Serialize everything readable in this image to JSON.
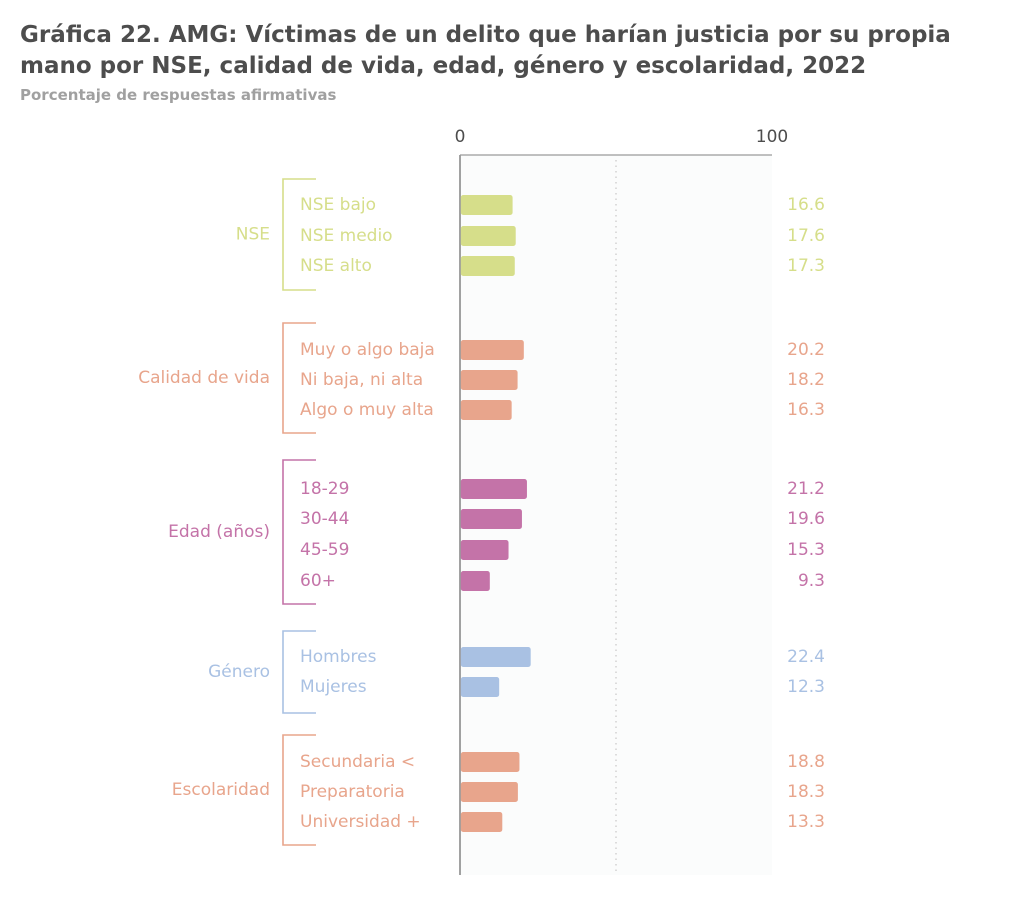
{
  "title": "Gráfica 22. AMG: Víctimas de un delito que harían justicia por su propia mano por NSE, calidad de vida, edad, género y escolaridad, 2022",
  "subtitle": "Porcentaje de respuestas afirmativas",
  "chart_data": {
    "type": "bar",
    "orientation": "horizontal",
    "xlim": [
      0,
      100
    ],
    "axis_ticks": [
      "0",
      "100"
    ],
    "groups": [
      {
        "label": "NSE",
        "color": "#d6de8a",
        "categories": [
          "NSE bajo",
          "NSE medio",
          "NSE alto"
        ],
        "values": [
          16.6,
          17.6,
          17.3
        ],
        "value_labels": [
          "16.6",
          "17.6",
          "17.3"
        ]
      },
      {
        "label": "Calidad de vida",
        "color": "#e8a58c",
        "categories": [
          "Muy o algo baja",
          "Ni baja, ni alta",
          "Algo o muy alta"
        ],
        "values": [
          20.2,
          18.2,
          16.3
        ],
        "value_labels": [
          "20.2",
          "18.2",
          "16.3"
        ]
      },
      {
        "label": "Edad (años)",
        "color": "#c473a8",
        "categories": [
          "18-29",
          "30-44",
          "45-59",
          "60+"
        ],
        "values": [
          21.2,
          19.6,
          15.3,
          9.3
        ],
        "value_labels": [
          "21.2",
          "19.6",
          "15.3",
          "9.3"
        ]
      },
      {
        "label": "Género",
        "color": "#a9c1e3",
        "categories": [
          "Hombres",
          "Mujeres"
        ],
        "values": [
          22.4,
          12.3
        ],
        "value_labels": [
          "22.4",
          "12.3"
        ]
      },
      {
        "label": "Escolaridad",
        "color": "#e8a58c",
        "categories": [
          "Secundaria <",
          "Preparatoria",
          "Universidad +"
        ],
        "values": [
          18.8,
          18.3,
          13.3
        ],
        "value_labels": [
          "18.8",
          "18.3",
          "13.3"
        ]
      }
    ]
  }
}
